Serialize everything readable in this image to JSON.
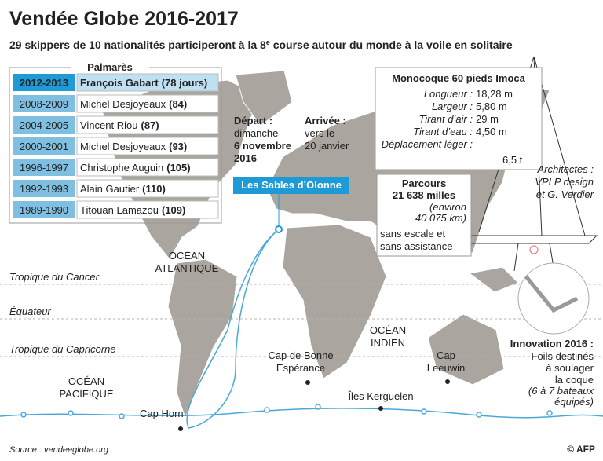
{
  "header": {
    "title": "Vendée Globe 2016-2017",
    "subtitle": [
      "29 skippers de 10 nationalités participeront à la 8",
      "e",
      " course autour du monde à la voile en solitaire"
    ]
  },
  "palmares": {
    "title": "Palmarès",
    "rows": [
      {
        "years": "2012-2013",
        "name": "François Gabart",
        "detail": "(78 jours)"
      },
      {
        "years": "2008-2009",
        "name": "Michel Desjoyeaux",
        "detail": "(84)"
      },
      {
        "years": "2004-2005",
        "name": "Vincent Riou",
        "detail": "(87)"
      },
      {
        "years": "2000-2001",
        "name": "Michel Desjoyeaux",
        "detail": "(93)"
      },
      {
        "years": "1996-1997",
        "name": "Christophe Auguin",
        "detail": "(105)"
      },
      {
        "years": "1992-1993",
        "name": "Alain Gautier",
        "detail": "(110)"
      },
      {
        "years": "1989-1990",
        "name": "Titouan Lamazou",
        "detail": "(109)"
      }
    ]
  },
  "depart": {
    "label": "Départ :",
    "lines": [
      "dimanche",
      "6 novembre",
      "2016"
    ]
  },
  "arrivee": {
    "label": "Arrivée :",
    "lines": [
      "vers le",
      "20 janvier"
    ]
  },
  "port": "Les Sables d’Olonne",
  "boat": {
    "title": "Monocoque 60 pieds Imoca",
    "specs": [
      {
        "label": "Longueur :",
        "value": "18,28 m"
      },
      {
        "label": "Largeur :",
        "value": "5,80 m"
      },
      {
        "label": "Tirant d’air :",
        "value": "29 m"
      },
      {
        "label": "Tirant d’eau :",
        "value": "4,50 m"
      },
      {
        "label": "Déplacement léger :",
        "value": ""
      }
    ],
    "displacement": "6,5 t"
  },
  "parcours": {
    "title": "Parcours",
    "distance": "21 638 milles",
    "approx": [
      "(environ",
      "40 075 km)"
    ],
    "note": [
      "sans escale et",
      "sans assistance"
    ]
  },
  "architects": [
    "Architectes :",
    "VPLP design",
    "et G. Verdier"
  ],
  "innovation": {
    "title": "Innovation 2016 :",
    "lines": [
      "Foils destinés",
      "à soulager",
      "la coque"
    ],
    "note": [
      "(6 à 7 bateaux",
      "équipés)"
    ]
  },
  "map_labels": {
    "atlantic": [
      "OCÉAN",
      "ATLANTIQUE"
    ],
    "indian": [
      "OCÉAN",
      "INDIEN"
    ],
    "pacific": [
      "OCÉAN",
      "PACIFIQUE"
    ],
    "cancer": "Tropique du Cancer",
    "equator": "Équateur",
    "capricorn": "Tropique du Capricorne",
    "cap_horn": "Cap Horn",
    "bonne_esperance": [
      "Cap de Bonne",
      "Espérance"
    ],
    "kerguelen": "Îles Kerguelen",
    "leeuwin": [
      "Cap",
      "Leeuwin"
    ]
  },
  "footer": {
    "source": "Source : vendeeglobe.org",
    "credit": "© AFP"
  }
}
